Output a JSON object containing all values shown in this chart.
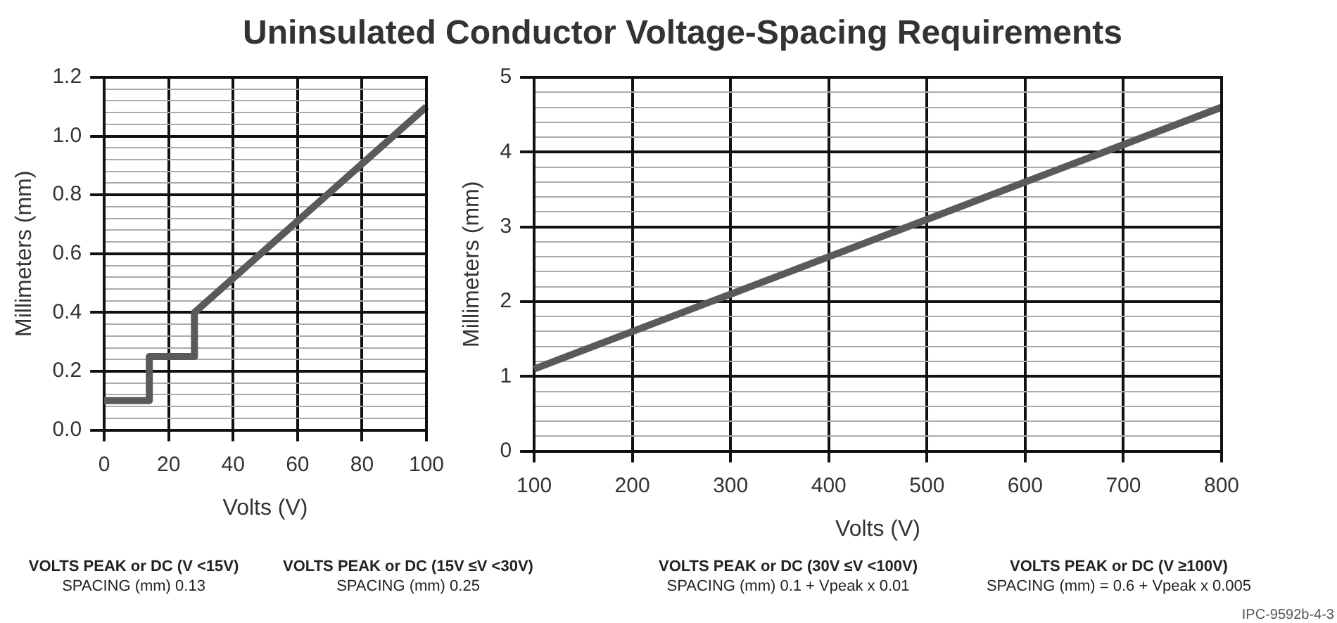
{
  "chart_data": [
    {
      "type": "line",
      "title": "Uninsulated Conductor Voltage-Spacing Requirements",
      "xlabel": "Volts (V)",
      "ylabel": "Millimeters (mm)",
      "series": [
        {
          "color": "#5a5a5a",
          "x": [
            0,
            14,
            14,
            28,
            28,
            100
          ],
          "values": [
            0.1,
            0.1,
            0.25,
            0.25,
            0.4,
            1.1
          ]
        }
      ],
      "xlim": [
        0,
        100
      ],
      "xticks": [
        0,
        20,
        40,
        60,
        80,
        100
      ],
      "ylim": [
        0,
        1.2
      ],
      "yticks": [
        {
          "value": 0,
          "label": "0.0"
        },
        {
          "value": 0.04,
          "label": null
        },
        {
          "value": 0.08,
          "label": null
        },
        {
          "value": 0.12,
          "label": null
        },
        {
          "value": 0.16,
          "label": null
        },
        {
          "value": 0.2,
          "label": "0.2"
        },
        {
          "value": 0.24,
          "label": null
        },
        {
          "value": 0.28,
          "label": null
        },
        {
          "value": 0.32,
          "label": null
        },
        {
          "value": 0.36,
          "label": null
        },
        {
          "value": 0.4,
          "label": "0.4"
        },
        {
          "value": 0.44,
          "label": null
        },
        {
          "value": 0.48,
          "label": null
        },
        {
          "value": 0.52,
          "label": null
        },
        {
          "value": 0.56,
          "label": null
        },
        {
          "value": 0.6,
          "label": "0.6"
        },
        {
          "value": 0.64,
          "label": null
        },
        {
          "value": 0.68,
          "label": null
        },
        {
          "value": 0.72,
          "label": null
        },
        {
          "value": 0.76,
          "label": null
        },
        {
          "value": 0.8,
          "label": "0.8"
        },
        {
          "value": 0.84,
          "label": null
        },
        {
          "value": 0.88,
          "label": null
        },
        {
          "value": 0.92,
          "label": null
        },
        {
          "value": 0.96,
          "label": null
        },
        {
          "value": 1.0,
          "label": "1.0"
        },
        {
          "value": 1.04,
          "label": null
        },
        {
          "value": 1.08,
          "label": null
        },
        {
          "value": 1.12,
          "label": null
        },
        {
          "value": 1.16,
          "label": null
        },
        {
          "value": 1.2,
          "label": "1.2"
        }
      ],
      "grid": true,
      "legend": false,
      "marker": "none",
      "line_style": "solid"
    },
    {
      "type": "line",
      "xlabel": "Volts (V)",
      "ylabel": "Millimeters (mm)",
      "series": [
        {
          "color": "#5a5a5a",
          "x": [
            100,
            800
          ],
          "values": [
            1.1,
            4.6
          ]
        }
      ],
      "xlim": [
        100,
        800
      ],
      "xticks": [
        100,
        200,
        300,
        400,
        500,
        600,
        700,
        800
      ],
      "ylim": [
        0,
        5
      ],
      "yticks": [
        0,
        {
          "value": 0.2,
          "label": null
        },
        {
          "value": 0.4,
          "label": null
        },
        {
          "value": 0.6,
          "label": null
        },
        {
          "value": 0.8,
          "label": null
        },
        1,
        {
          "value": 1.2,
          "label": null
        },
        {
          "value": 1.4,
          "label": null
        },
        {
          "value": 1.6,
          "label": null
        },
        {
          "value": 1.8,
          "label": null
        },
        2,
        {
          "value": 2.2,
          "label": null
        },
        {
          "value": 2.4,
          "label": null
        },
        {
          "value": 2.6,
          "label": null
        },
        {
          "value": 2.8,
          "label": null
        },
        3,
        {
          "value": 3.2,
          "label": null
        },
        {
          "value": 3.4,
          "label": null
        },
        {
          "value": 3.6,
          "label": null
        },
        {
          "value": 3.8,
          "label": null
        },
        4,
        {
          "value": 4.2,
          "label": null
        },
        {
          "value": 4.4,
          "label": null
        },
        {
          "value": 4.6,
          "label": null
        },
        {
          "value": 4.8,
          "label": null
        },
        5
      ],
      "grid": true,
      "legend": false,
      "marker": "none",
      "line_style": "solid",
      "annotations": [
        "VOLTS PEAK or DC (V <15V)",
        "SPACING (mm)  0.13",
        "VOLTS PEAK or DC (15V ≤V <30V)",
        "SPACING (mm)  0.25",
        "VOLTS PEAK or DC (30V ≤V <100V)",
        "SPACING (mm)  0.1 + Vpeak x 0.01",
        "VOLTS PEAK or DC (V ≥100V)",
        "SPACING (mm) = 0.6 + Vpeak x 0.005",
        "IPC-9592b-4-3"
      ]
    }
  ]
}
